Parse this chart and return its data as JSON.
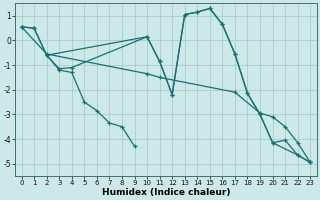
{
  "xlabel": "Humidex (Indice chaleur)",
  "xlim": [
    -0.5,
    23.5
  ],
  "ylim": [
    -5.5,
    1.5
  ],
  "yticks": [
    1,
    0,
    -1,
    -2,
    -3,
    -4,
    -5
  ],
  "xticks": [
    0,
    1,
    2,
    3,
    4,
    5,
    6,
    7,
    8,
    9,
    10,
    11,
    12,
    13,
    14,
    15,
    16,
    17,
    18,
    19,
    20,
    21,
    22,
    23
  ],
  "bg_color": "#cce8e8",
  "grid_color": "#aacccc",
  "line_color": "#1a7070",
  "lines": [
    {
      "x": [
        0,
        1,
        2,
        3,
        4,
        5,
        6,
        7,
        8,
        9
      ],
      "y": [
        0.55,
        0.5,
        -0.6,
        -1.2,
        -1.3,
        -2.5,
        -2.85,
        -3.35,
        -3.5,
        -4.3
      ]
    },
    {
      "x": [
        0,
        1,
        2,
        10,
        11,
        12,
        13,
        14,
        15,
        16,
        17,
        18,
        19,
        20,
        21,
        22,
        23
      ],
      "y": [
        0.55,
        0.5,
        -0.6,
        0.15,
        -0.85,
        -2.2,
        1.05,
        1.15,
        1.3,
        0.65,
        -0.55,
        -2.15,
        -3.0,
        -4.15,
        -4.05,
        -4.65,
        -4.95
      ]
    },
    {
      "x": [
        2,
        3,
        4,
        10,
        11,
        12,
        13,
        14,
        15,
        16,
        17,
        18,
        19,
        20,
        22,
        23
      ],
      "y": [
        -0.6,
        -1.15,
        -1.1,
        0.15,
        -0.85,
        -2.2,
        1.05,
        1.15,
        1.3,
        0.65,
        -0.55,
        -2.15,
        -3.0,
        -4.15,
        -4.65,
        -4.95
      ]
    },
    {
      "x": [
        0,
        2,
        10,
        11,
        17,
        19,
        20,
        21,
        22,
        23
      ],
      "y": [
        0.55,
        -0.55,
        -1.35,
        -1.5,
        -2.1,
        -2.95,
        -3.1,
        -3.5,
        -4.15,
        -4.95
      ]
    }
  ]
}
